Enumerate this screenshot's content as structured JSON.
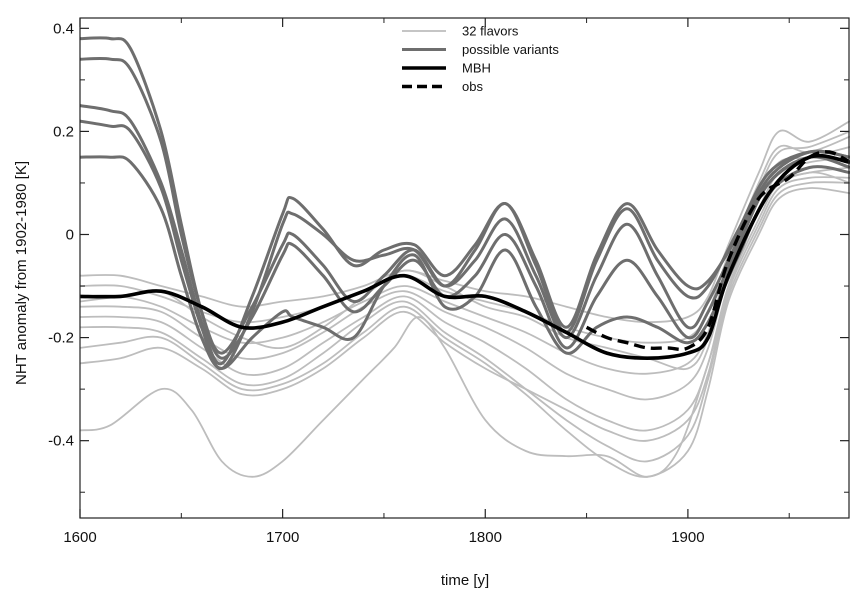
{
  "chart_data": {
    "type": "line",
    "xlabel": "time [y]",
    "ylabel": "NHT anomaly from 1902-1980  [K]",
    "xlim": [
      1600,
      1980
    ],
    "ylim": [
      -0.55,
      0.42
    ],
    "x_ticks": [
      "1600",
      "1700",
      "1800",
      "1900"
    ],
    "y_ticks": [
      "0.4",
      "0.2",
      "0",
      "-0.2",
      "-0.4"
    ],
    "legend_position": "top-center",
    "legend": [
      {
        "label": "32 flavors",
        "style": "thin-light"
      },
      {
        "label": "possible variants",
        "style": "medium-dark"
      },
      {
        "label": "MBH",
        "style": "thick-black"
      },
      {
        "label": "obs",
        "style": "dashed-black"
      }
    ],
    "colors": {
      "flavors": "#bdbdbd",
      "variants": "#6e6e6e",
      "mbh": "#000000",
      "obs": "#000000"
    },
    "series": [
      {
        "name": "MBH",
        "x": [
          1600,
          1620,
          1640,
          1660,
          1680,
          1700,
          1720,
          1740,
          1760,
          1780,
          1800,
          1820,
          1840,
          1860,
          1880,
          1900,
          1910,
          1920,
          1940,
          1960,
          1980
        ],
        "values": [
          -0.12,
          -0.12,
          -0.11,
          -0.14,
          -0.18,
          -0.17,
          -0.14,
          -0.11,
          -0.08,
          -0.12,
          -0.12,
          -0.15,
          -0.19,
          -0.23,
          -0.24,
          -0.23,
          -0.2,
          -0.08,
          0.08,
          0.15,
          0.14
        ]
      },
      {
        "name": "obs",
        "x": [
          1850,
          1860,
          1870,
          1880,
          1890,
          1900,
          1910,
          1920,
          1935,
          1950,
          1960,
          1970,
          1980
        ],
        "values": [
          -0.18,
          -0.2,
          -0.21,
          -0.22,
          -0.22,
          -0.22,
          -0.18,
          -0.05,
          0.07,
          0.11,
          0.15,
          0.16,
          0.14
        ]
      }
    ],
    "variants": [
      {
        "x": [
          1600,
          1615,
          1625,
          1640,
          1650,
          1660,
          1670,
          1685,
          1700,
          1705,
          1720,
          1735,
          1750,
          1765,
          1780,
          1795,
          1810,
          1825,
          1840,
          1855,
          1870,
          1885,
          1900,
          1910,
          1925,
          1940,
          1960,
          1980
        ],
        "values": [
          0.38,
          0.38,
          0.36,
          0.2,
          0.02,
          -0.15,
          -0.24,
          -0.16,
          -0.04,
          -0.02,
          -0.08,
          -0.15,
          -0.1,
          -0.05,
          -0.12,
          -0.08,
          0.0,
          -0.1,
          -0.22,
          -0.12,
          -0.05,
          -0.12,
          -0.2,
          -0.15,
          -0.02,
          0.1,
          0.15,
          0.13
        ]
      },
      {
        "x": [
          1600,
          1615,
          1625,
          1640,
          1650,
          1660,
          1670,
          1685,
          1700,
          1705,
          1720,
          1735,
          1750,
          1765,
          1780,
          1795,
          1810,
          1825,
          1840,
          1855,
          1870,
          1885,
          1900,
          1910,
          1925,
          1940,
          1960,
          1980
        ],
        "values": [
          0.34,
          0.34,
          0.32,
          0.18,
          0.0,
          -0.15,
          -0.23,
          -0.14,
          -0.02,
          0.0,
          -0.06,
          -0.13,
          -0.08,
          -0.03,
          -0.1,
          -0.05,
          0.03,
          -0.08,
          -0.2,
          -0.08,
          0.02,
          -0.08,
          -0.18,
          -0.13,
          -0.01,
          0.1,
          0.15,
          0.14
        ]
      },
      {
        "x": [
          1600,
          1615,
          1625,
          1640,
          1650,
          1660,
          1670,
          1685,
          1700,
          1705,
          1720,
          1735,
          1750,
          1765,
          1780,
          1795,
          1810,
          1825,
          1840,
          1855,
          1870,
          1885,
          1900,
          1910,
          1925,
          1940,
          1960,
          1980
        ],
        "values": [
          0.25,
          0.24,
          0.22,
          0.1,
          -0.03,
          -0.17,
          -0.25,
          -0.12,
          0.04,
          0.07,
          0.01,
          -0.06,
          -0.03,
          -0.02,
          -0.08,
          -0.02,
          0.06,
          -0.05,
          -0.18,
          -0.04,
          0.06,
          -0.03,
          -0.1,
          -0.09,
          0.0,
          0.11,
          0.16,
          0.15
        ]
      },
      {
        "x": [
          1600,
          1615,
          1625,
          1640,
          1650,
          1660,
          1670,
          1685,
          1700,
          1705,
          1720,
          1735,
          1750,
          1765,
          1780,
          1795,
          1810,
          1825,
          1840,
          1855,
          1870,
          1885,
          1900,
          1910,
          1925,
          1940,
          1960,
          1980
        ],
        "values": [
          0.22,
          0.21,
          0.2,
          0.09,
          -0.05,
          -0.18,
          -0.26,
          -0.15,
          0.02,
          0.04,
          0.0,
          -0.05,
          -0.04,
          -0.03,
          -0.1,
          -0.03,
          0.06,
          -0.06,
          -0.19,
          -0.05,
          0.05,
          -0.05,
          -0.12,
          -0.1,
          0.01,
          0.12,
          0.16,
          0.15
        ]
      },
      {
        "x": [
          1600,
          1615,
          1625,
          1640,
          1650,
          1660,
          1670,
          1685,
          1700,
          1705,
          1720,
          1735,
          1750,
          1765,
          1780,
          1795,
          1810,
          1825,
          1840,
          1855,
          1870,
          1885,
          1900,
          1910,
          1925,
          1940,
          1960,
          1980
        ],
        "values": [
          0.15,
          0.15,
          0.14,
          0.05,
          -0.08,
          -0.2,
          -0.26,
          -0.2,
          -0.15,
          -0.16,
          -0.18,
          -0.2,
          -0.1,
          -0.04,
          -0.14,
          -0.12,
          -0.03,
          -0.14,
          -0.23,
          -0.18,
          -0.16,
          -0.18,
          -0.21,
          -0.17,
          -0.04,
          0.08,
          0.13,
          0.12
        ]
      }
    ],
    "flavors": [
      {
        "x": [
          1600,
          1620,
          1640,
          1660,
          1680,
          1700,
          1720,
          1740,
          1760,
          1780,
          1800,
          1820,
          1840,
          1860,
          1880,
          1900,
          1910,
          1920,
          1935,
          1945,
          1960,
          1980
        ],
        "values": [
          -0.08,
          -0.08,
          -0.1,
          -0.12,
          -0.14,
          -0.13,
          -0.12,
          -0.1,
          -0.07,
          -0.09,
          -0.11,
          -0.12,
          -0.14,
          -0.16,
          -0.17,
          -0.16,
          -0.12,
          -0.02,
          0.12,
          0.2,
          0.18,
          0.22
        ]
      },
      {
        "x": [
          1600,
          1620,
          1640,
          1660,
          1680,
          1700,
          1720,
          1740,
          1760,
          1780,
          1800,
          1820,
          1840,
          1860,
          1880,
          1900,
          1910,
          1920,
          1935,
          1945,
          1960,
          1980
        ],
        "values": [
          -0.1,
          -0.1,
          -0.12,
          -0.15,
          -0.17,
          -0.16,
          -0.14,
          -0.11,
          -0.08,
          -0.11,
          -0.13,
          -0.15,
          -0.18,
          -0.2,
          -0.21,
          -0.2,
          -0.15,
          -0.04,
          0.09,
          0.16,
          0.17,
          0.2
        ]
      },
      {
        "x": [
          1600,
          1620,
          1640,
          1660,
          1680,
          1700,
          1720,
          1740,
          1760,
          1780,
          1800,
          1820,
          1840,
          1860,
          1880,
          1900,
          1910,
          1920,
          1935,
          1945,
          1960,
          1980
        ],
        "values": [
          -0.12,
          -0.12,
          -0.14,
          -0.18,
          -0.21,
          -0.2,
          -0.17,
          -0.13,
          -0.1,
          -0.13,
          -0.16,
          -0.19,
          -0.23,
          -0.26,
          -0.27,
          -0.25,
          -0.19,
          -0.06,
          0.07,
          0.14,
          0.15,
          0.17
        ]
      },
      {
        "x": [
          1600,
          1620,
          1640,
          1660,
          1680,
          1700,
          1720,
          1740,
          1760,
          1780,
          1800,
          1820,
          1840,
          1860,
          1880,
          1900,
          1910,
          1920,
          1935,
          1945,
          1960,
          1980
        ],
        "values": [
          -0.14,
          -0.14,
          -0.15,
          -0.2,
          -0.24,
          -0.23,
          -0.19,
          -0.14,
          -0.11,
          -0.15,
          -0.18,
          -0.22,
          -0.27,
          -0.3,
          -0.32,
          -0.29,
          -0.22,
          -0.08,
          0.05,
          0.12,
          0.14,
          0.15
        ]
      },
      {
        "x": [
          1600,
          1620,
          1640,
          1660,
          1680,
          1700,
          1720,
          1740,
          1760,
          1780,
          1800,
          1820,
          1840,
          1860,
          1880,
          1900,
          1910,
          1920,
          1935,
          1945,
          1960,
          1980
        ],
        "values": [
          -0.16,
          -0.16,
          -0.17,
          -0.22,
          -0.27,
          -0.26,
          -0.21,
          -0.16,
          -0.12,
          -0.17,
          -0.21,
          -0.26,
          -0.32,
          -0.36,
          -0.38,
          -0.34,
          -0.25,
          -0.1,
          0.03,
          0.1,
          0.12,
          0.13
        ]
      },
      {
        "x": [
          1600,
          1620,
          1640,
          1660,
          1680,
          1700,
          1720,
          1740,
          1760,
          1780,
          1800,
          1820,
          1840,
          1860,
          1880,
          1900,
          1910,
          1920,
          1935,
          1945,
          1960,
          1980
        ],
        "values": [
          -0.18,
          -0.18,
          -0.19,
          -0.24,
          -0.29,
          -0.28,
          -0.23,
          -0.17,
          -0.13,
          -0.19,
          -0.24,
          -0.3,
          -0.36,
          -0.41,
          -0.44,
          -0.39,
          -0.28,
          -0.12,
          0.01,
          0.08,
          0.1,
          0.1
        ]
      },
      {
        "x": [
          1600,
          1620,
          1640,
          1660,
          1680,
          1700,
          1720,
          1740,
          1760,
          1780,
          1800,
          1820,
          1840,
          1860,
          1880,
          1900,
          1910,
          1920,
          1935,
          1945,
          1960,
          1980
        ],
        "values": [
          -0.22,
          -0.21,
          -0.2,
          -0.25,
          -0.3,
          -0.29,
          -0.25,
          -0.19,
          -0.14,
          -0.2,
          -0.25,
          -0.31,
          -0.38,
          -0.44,
          -0.47,
          -0.42,
          -0.3,
          -0.13,
          0.0,
          0.07,
          0.09,
          0.08
        ]
      },
      {
        "x": [
          1600,
          1620,
          1640,
          1660,
          1680,
          1700,
          1720,
          1740,
          1760,
          1780,
          1800,
          1820,
          1840,
          1860,
          1880,
          1900,
          1910,
          1920,
          1935,
          1945,
          1960,
          1980
        ],
        "values": [
          -0.13,
          -0.12,
          -0.11,
          -0.16,
          -0.2,
          -0.22,
          -0.18,
          -0.12,
          -0.07,
          -0.1,
          -0.14,
          -0.16,
          -0.2,
          -0.22,
          -0.24,
          -0.26,
          -0.2,
          -0.05,
          0.1,
          0.17,
          0.16,
          0.19
        ]
      },
      {
        "x": [
          1600,
          1620,
          1640,
          1660,
          1680,
          1700,
          1720,
          1740,
          1760,
          1780,
          1800,
          1820,
          1840,
          1860,
          1880,
          1900,
          1910,
          1920,
          1935,
          1945,
          1960,
          1980
        ],
        "values": [
          -0.25,
          -0.24,
          -0.22,
          -0.26,
          -0.31,
          -0.3,
          -0.26,
          -0.2,
          -0.15,
          -0.21,
          -0.26,
          -0.3,
          -0.34,
          -0.38,
          -0.4,
          -0.36,
          -0.27,
          -0.11,
          0.02,
          0.09,
          0.11,
          0.11
        ]
      },
      {
        "x": [
          1600,
          1615,
          1640,
          1655,
          1670,
          1685,
          1700,
          1720,
          1740,
          1755,
          1767,
          1780,
          1800,
          1820,
          1840,
          1860,
          1880,
          1895,
          1910,
          1925,
          1940,
          1960,
          1980
        ],
        "values": [
          -0.38,
          -0.37,
          -0.3,
          -0.34,
          -0.44,
          -0.47,
          -0.44,
          -0.36,
          -0.28,
          -0.22,
          -0.16,
          -0.22,
          -0.36,
          -0.42,
          -0.43,
          -0.43,
          -0.47,
          -0.42,
          -0.25,
          -0.05,
          0.08,
          0.12,
          0.1
        ]
      }
    ]
  }
}
